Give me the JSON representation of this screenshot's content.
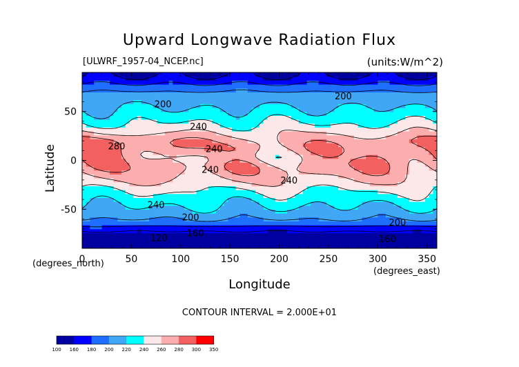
{
  "header": {
    "title": "Upward Longwave Radiation Flux",
    "source_label": "[ULWRF_1957-04_NCEP.nc]",
    "units_label": "(units:W/m^2)"
  },
  "footer": {
    "contour_interval": "CONTOUR INTERVAL = 2.000E+01"
  },
  "chart_data": {
    "type": "heatmap",
    "title": "Upward Longwave Radiation Flux",
    "subtitle": "[ULWRF_1957-04_NCEP.nc]",
    "units": "(units:W/m^2)",
    "xlabel": "Longitude",
    "ylabel": "Latitude",
    "x_unit_label": "(degrees_east)",
    "y_unit_label": "(degrees_north)",
    "xlim": [
      0,
      360
    ],
    "ylim": [
      -90,
      90
    ],
    "x_ticks": [
      0,
      50,
      100,
      150,
      200,
      250,
      300,
      350
    ],
    "y_ticks": [
      -50,
      0,
      50
    ],
    "contour_interval": 20,
    "contour_labels": [
      {
        "text": "200",
        "lon": 82,
        "lat": 58
      },
      {
        "text": "200",
        "lon": 265,
        "lat": 66
      },
      {
        "text": "240",
        "lon": 118,
        "lat": 35
      },
      {
        "text": "280",
        "lon": 35,
        "lat": 15
      },
      {
        "text": "240",
        "lon": 134,
        "lat": 12
      },
      {
        "text": "240",
        "lon": 130,
        "lat": -9
      },
      {
        "text": "240",
        "lon": 210,
        "lat": -20
      },
      {
        "text": "240",
        "lon": 75,
        "lat": -45
      },
      {
        "text": "200",
        "lon": 110,
        "lat": -58
      },
      {
        "text": "200",
        "lon": 320,
        "lat": -63
      },
      {
        "text": "120",
        "lon": 78,
        "lat": -79
      },
      {
        "text": "160",
        "lon": 115,
        "lat": -74
      },
      {
        "text": "160",
        "lon": 310,
        "lat": -80
      }
    ],
    "colorbar": {
      "levels": [
        "100",
        "160",
        "180",
        "200",
        "220",
        "240",
        "260",
        "280",
        "300",
        "350"
      ],
      "colors": [
        "#0000a0",
        "#0000ff",
        "#1e6fff",
        "#3fa7f5",
        "#00ffff",
        "#fce8e8",
        "#fcaeae",
        "#f26060",
        "#ff0000"
      ]
    }
  }
}
